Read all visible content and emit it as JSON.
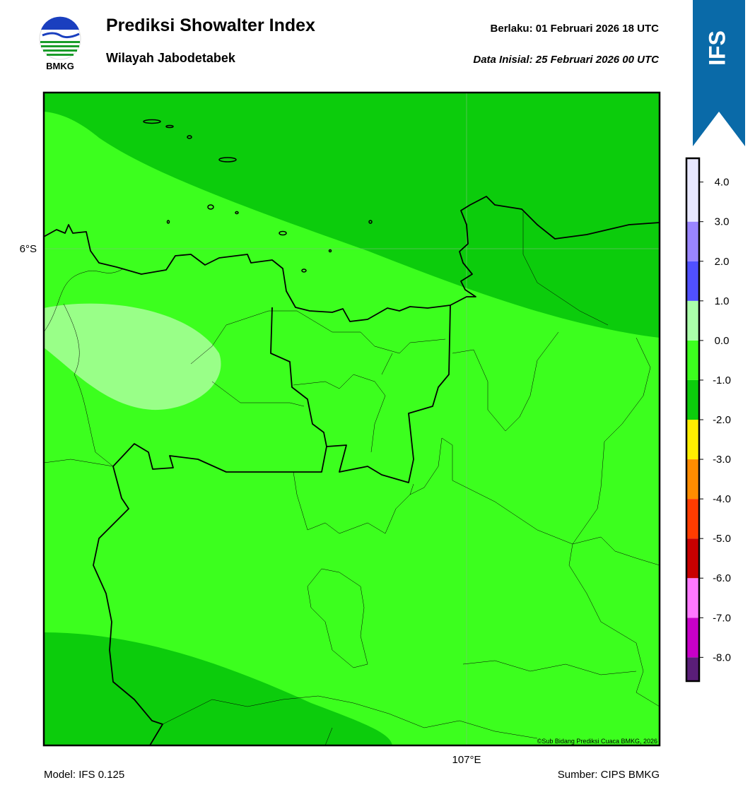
{
  "header": {
    "logo_text": "BMKG",
    "title": "Prediksi Showalter Index",
    "subtitle": "Wilayah Jabodetabek",
    "valid_time": "Berlaku:  01 Februari 2026 18 UTC",
    "init_time": "Data Inisial:  25 Februari 2026 00 UTC",
    "badge": "IFS"
  },
  "map": {
    "lat_label": "6°S",
    "lon_label": "107°E",
    "copyright": "©Sub Bidang Prediksi Cuaca BMKG, 2026"
  },
  "colorbar": {
    "lim": [
      -8.6,
      4.6
    ],
    "bounds": [
      -8.6,
      -8,
      -7,
      -6,
      -5,
      -4,
      -3,
      -2,
      -1,
      0,
      1,
      2,
      3,
      4.6
    ],
    "colors": [
      "#5a1e78",
      "#c800c8",
      "#ff78ff",
      "#c80000",
      "#ff3c00",
      "#ff8c00",
      "#ffee00",
      "#0ccc0c",
      "#3cff1e",
      "#aaffaa",
      "#5050ff",
      "#9a85ff",
      "#e8e8ff"
    ],
    "ticks": [
      {
        "value": 4,
        "label": "4.0"
      },
      {
        "value": 3,
        "label": "3.0"
      },
      {
        "value": 2,
        "label": "2.0"
      },
      {
        "value": 1,
        "label": "1.0"
      },
      {
        "value": 0,
        "label": "0.0"
      },
      {
        "value": -1,
        "label": "-1.0"
      },
      {
        "value": -2,
        "label": "-2.0"
      },
      {
        "value": -3,
        "label": "-3.0"
      },
      {
        "value": -4,
        "label": "-4.0"
      },
      {
        "value": -5,
        "label": "-5.0"
      },
      {
        "value": -6,
        "label": "-6.0"
      },
      {
        "value": -7,
        "label": "-7.0"
      },
      {
        "value": -8,
        "label": "-8.0"
      }
    ]
  },
  "footer": {
    "model": "Model: IFS 0.125",
    "source": "Sumber: CIPS BMKG"
  }
}
